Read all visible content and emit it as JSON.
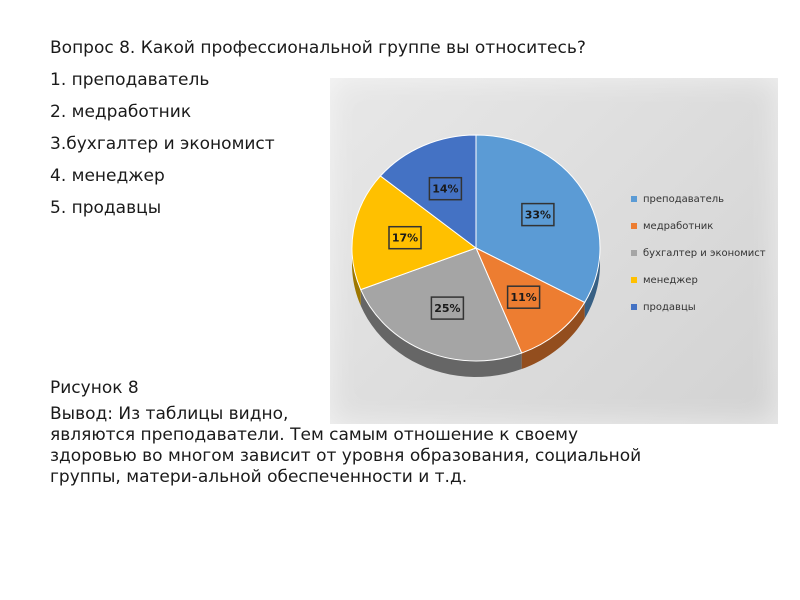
{
  "question": "Вопрос 8. Какой профессиональной группе вы относитесь?",
  "options": [
    "1. преподаватель",
    "2. медработник",
    "3.бухгалтер и экономист",
    "4. менеджер",
    "5. продавцы"
  ],
  "figure_caption": "Рисунок 8",
  "conclusion": "Вывод: Из таблицы видно,\nявляются преподаватели. Тем самым отношение к своему\nздоровью во многом зависит от уровня образования, социальной\nгруппы, матери-альной обеспеченности и т.д.",
  "chart_data": {
    "type": "pie",
    "categories": [
      "преподаватель",
      "медработник",
      "бухгалтер и экономист",
      "менеджер",
      "продавцы"
    ],
    "values": [
      33,
      11,
      25,
      17,
      14
    ],
    "value_labels": [
      "33%",
      "11%",
      "25%",
      "17%",
      "14%"
    ],
    "colors": [
      "#5b9bd5",
      "#ed7d31",
      "#a5a5a5",
      "#ffc000",
      "#4472c4"
    ],
    "legend_placement": "right",
    "style": "3d"
  }
}
